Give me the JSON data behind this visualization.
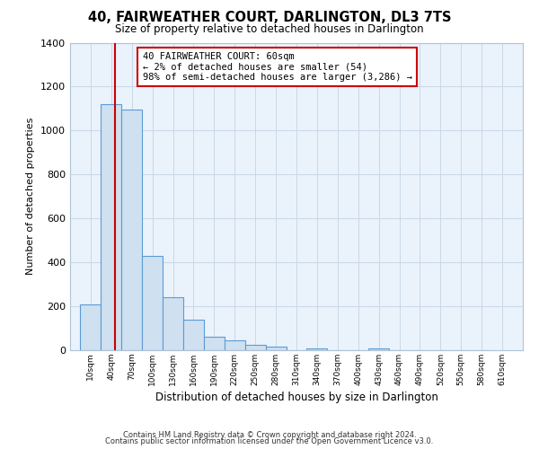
{
  "title": "40, FAIRWEATHER COURT, DARLINGTON, DL3 7TS",
  "subtitle": "Size of property relative to detached houses in Darlington",
  "xlabel": "Distribution of detached houses by size in Darlington",
  "ylabel": "Number of detached properties",
  "bin_edges": [
    10,
    40,
    70,
    100,
    130,
    160,
    190,
    220,
    250,
    280,
    310,
    340,
    370,
    400,
    430,
    460,
    490,
    520,
    550,
    580,
    610
  ],
  "counts": [
    210,
    1120,
    1095,
    430,
    240,
    140,
    60,
    45,
    25,
    15,
    0,
    10,
    0,
    0,
    10,
    0,
    0,
    0,
    0,
    0
  ],
  "bar_facecolor": "#cfe0f0",
  "bar_edgecolor": "#5b9bd5",
  "grid_color": "#c8d8e8",
  "bg_color": "#eaf2fb",
  "property_line_x": 60,
  "property_line_color": "#cc0000",
  "annotation_line1": "40 FAIRWEATHER COURT: 60sqm",
  "annotation_line2": "← 2% of detached houses are smaller (54)",
  "annotation_line3": "98% of semi-detached houses are larger (3,286) →",
  "annotation_box_edgecolor": "#cc0000",
  "ylim": [
    0,
    1400
  ],
  "yticks": [
    0,
    200,
    400,
    600,
    800,
    1000,
    1200,
    1400
  ],
  "footer1": "Contains HM Land Registry data © Crown copyright and database right 2024.",
  "footer2": "Contains public sector information licensed under the Open Government Licence v3.0."
}
